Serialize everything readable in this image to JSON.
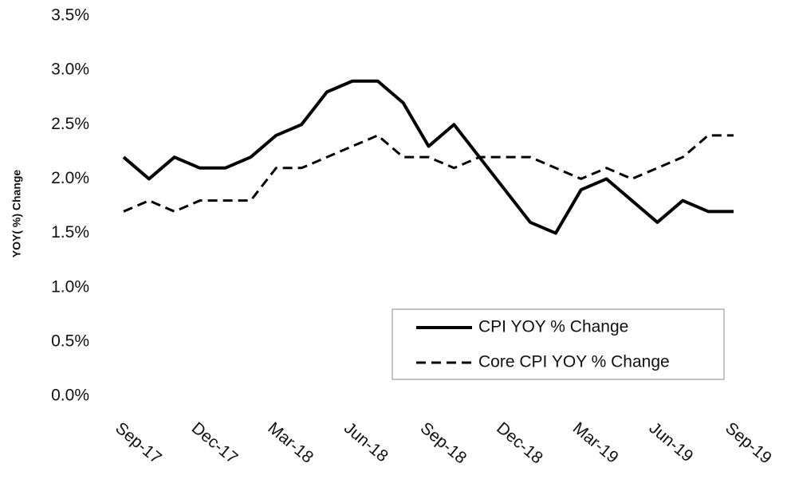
{
  "chart_data": {
    "type": "line",
    "y_label": "YOY( %) Change",
    "categories": [
      "Sep-17",
      null,
      null,
      "Dec-17",
      null,
      null,
      "Mar-18",
      null,
      null,
      "Jun-18",
      null,
      null,
      "Sep-18",
      null,
      null,
      "Dec-18",
      null,
      null,
      "Mar-19",
      null,
      null,
      "Jun-19",
      null,
      null,
      "Sep-19"
    ],
    "series": [
      {
        "name": "CPI YOY % Change",
        "color": "#000000",
        "dash": "solid",
        "values": [
          2.2,
          2.0,
          2.2,
          2.1,
          2.1,
          2.2,
          2.4,
          2.5,
          2.8,
          2.9,
          2.9,
          2.7,
          2.3,
          2.5,
          2.2,
          1.9,
          1.6,
          1.5,
          1.9,
          2.0,
          1.8,
          1.6,
          1.8,
          1.7,
          1.7
        ]
      },
      {
        "name": "Core CPI YOY % Change",
        "color": "#000000",
        "dash": "dashed",
        "values": [
          1.7,
          1.8,
          1.7,
          1.8,
          1.8,
          1.8,
          2.1,
          2.1,
          2.2,
          2.3,
          2.4,
          2.2,
          2.2,
          2.1,
          2.2,
          2.2,
          2.2,
          2.1,
          2.0,
          2.1,
          2.0,
          2.1,
          2.2,
          2.4,
          2.4
        ]
      }
    ],
    "ylim": [
      0,
      3.5
    ],
    "yticks": [
      {
        "value": 0,
        "label": "0.0%"
      },
      {
        "value": 0.5,
        "label": "0.5%"
      },
      {
        "value": 1,
        "label": "1.0%"
      },
      {
        "value": 1.5,
        "label": "1.5%"
      },
      {
        "value": 2,
        "label": "2.0%"
      },
      {
        "value": 2.5,
        "label": "2.5%"
      },
      {
        "value": 3,
        "label": "3.0%"
      },
      {
        "value": 3.5,
        "label": "3.5%"
      }
    ],
    "legend": "lower right"
  }
}
